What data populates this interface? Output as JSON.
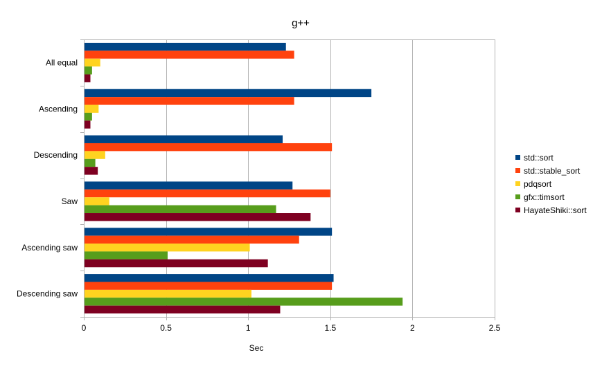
{
  "chart_data": {
    "type": "bar",
    "orientation": "horizontal",
    "title": "g++",
    "xlabel": "Sec",
    "ylabel": "",
    "categories": [
      "All equal",
      "Ascending",
      "Descending",
      "Saw",
      "Ascending saw",
      "Descending saw"
    ],
    "series": [
      {
        "name": "std::sort",
        "color": "#004586",
        "values": [
          1.23,
          1.75,
          1.21,
          1.27,
          1.51,
          1.52
        ]
      },
      {
        "name": "std::stable_sort",
        "color": "#ff420e",
        "values": [
          1.28,
          1.28,
          1.51,
          1.5,
          1.31,
          1.51
        ]
      },
      {
        "name": "pdqsort",
        "color": "#ffd320",
        "values": [
          0.1,
          0.09,
          0.13,
          0.155,
          1.01,
          1.02
        ]
      },
      {
        "name": "gfx::timsort",
        "color": "#579d1c",
        "values": [
          0.05,
          0.05,
          0.07,
          1.17,
          0.51,
          1.94
        ]
      },
      {
        "name": "HayateShiki::sort",
        "color": "#7e0021",
        "values": [
          0.04,
          0.04,
          0.085,
          1.38,
          1.12,
          1.195
        ]
      }
    ],
    "xlim": [
      0,
      2.5
    ],
    "xticks": [
      0,
      0.5,
      1,
      1.5,
      2,
      2.5
    ],
    "xtick_labels": [
      "0",
      "0.5",
      "1",
      "1.5",
      "2",
      "2.5"
    ],
    "grid": true,
    "legend_position": "right"
  }
}
